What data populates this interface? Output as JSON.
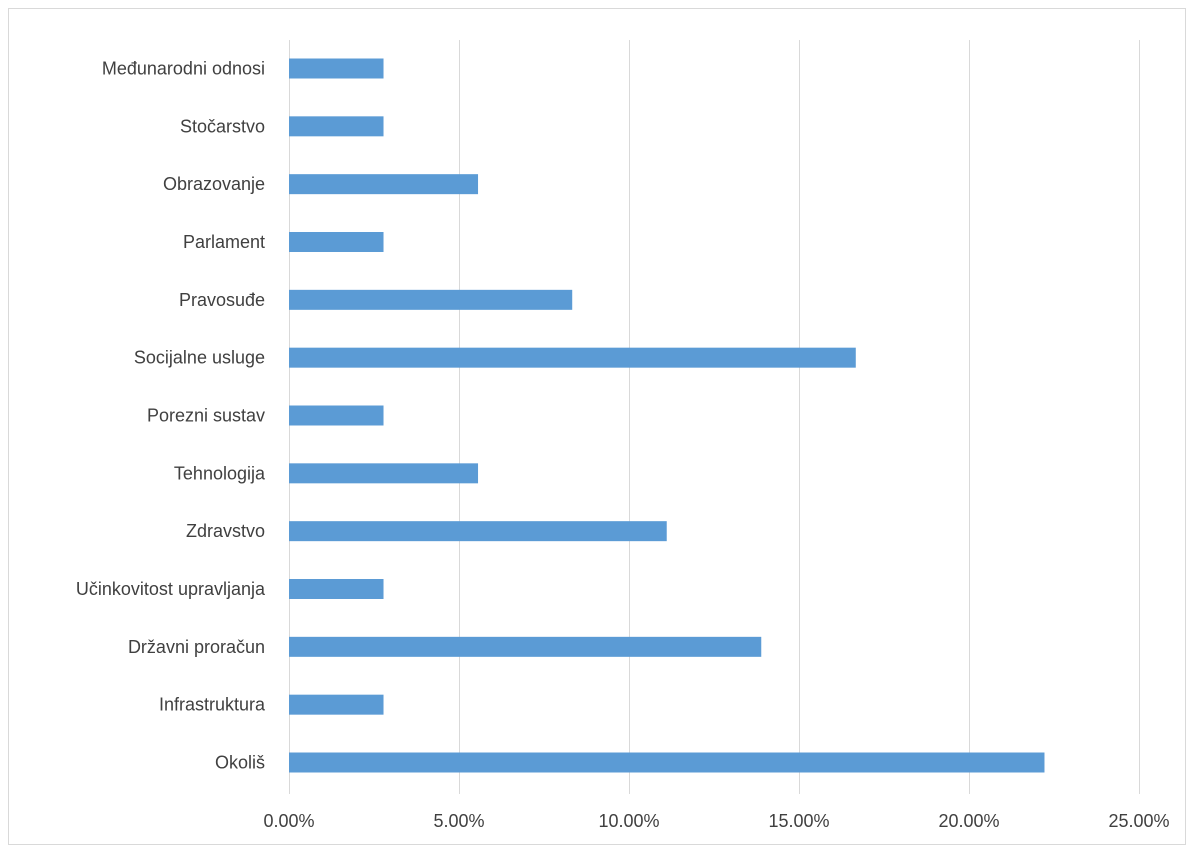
{
  "chart_data": {
    "type": "bar",
    "orientation": "horizontal",
    "title": "",
    "xlabel": "",
    "ylabel": "",
    "categories": [
      "Međunarodni odnosi",
      "Stočarstvo",
      "Obrazovanje",
      "Parlament",
      "Pravosuđe",
      "Socijalne usluge",
      "Porezni sustav",
      "Tehnologija",
      "Zdravstvo",
      "Učinkovitost upravljanja",
      "Državni proračun",
      "Infrastruktura",
      "Okoliš"
    ],
    "series": [
      {
        "values": [
          2.78,
          2.78,
          5.56,
          2.78,
          8.33,
          16.67,
          2.78,
          5.56,
          11.11,
          2.78,
          13.89,
          2.78,
          22.22
        ]
      }
    ],
    "xlim": [
      0,
      25
    ],
    "xticks": [
      "0.00%",
      "5.00%",
      "10.00%",
      "15.00%",
      "20.00%",
      "25.00%"
    ],
    "grid": true,
    "legend": "none",
    "bar_color": "#5b9bd5",
    "grid_color": "#d9d9d9",
    "text_color": "#404040"
  }
}
